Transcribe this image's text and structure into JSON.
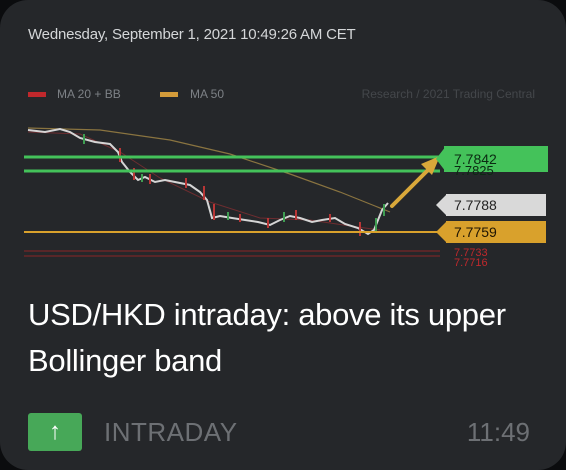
{
  "timestamp": "Wednesday, September 1, 2021 10:49:26 AM CET",
  "legend": {
    "ma20_label": "MA 20 + BB",
    "ma50_label": "MA 50",
    "ma20_color": "#c0282c",
    "ma50_color": "#d39b3a",
    "watermark": "Research / 2021 Trading Central"
  },
  "chart_data": {
    "type": "line",
    "title": "USD/HKD intraday",
    "price_labels": [
      {
        "value": "7.7842",
        "color": "#44c25a",
        "text_color": "#0b2a12"
      },
      {
        "value": "7.7825",
        "color": "#44c25a",
        "text_color": "#0b2a12"
      },
      {
        "value": "7.7788",
        "color": "#d9d9d9",
        "text_color": "#222222"
      },
      {
        "value": "7.7759",
        "color": "#d9a12c",
        "text_color": "#1f1503"
      },
      {
        "value": "7.7733",
        "color": "#c0282c",
        "text_color": "#c0282c"
      },
      {
        "value": "7.7716",
        "color": "#c0282c",
        "text_color": "#c0282c"
      }
    ],
    "levels": {
      "resistance_1": 7.7842,
      "resistance_2": 7.7825,
      "pivot": 7.7759,
      "support_1": 7.7733,
      "support_2": 7.7716
    },
    "ylim": [
      7.77,
      7.787
    ]
  },
  "headline": "USD/HKD intraday: above its upper Bollinger band",
  "badge": {
    "icon": "arrow-up-icon",
    "symbol": "↑",
    "color": "#47a858"
  },
  "category": "INTRADAY",
  "time": "11:49"
}
